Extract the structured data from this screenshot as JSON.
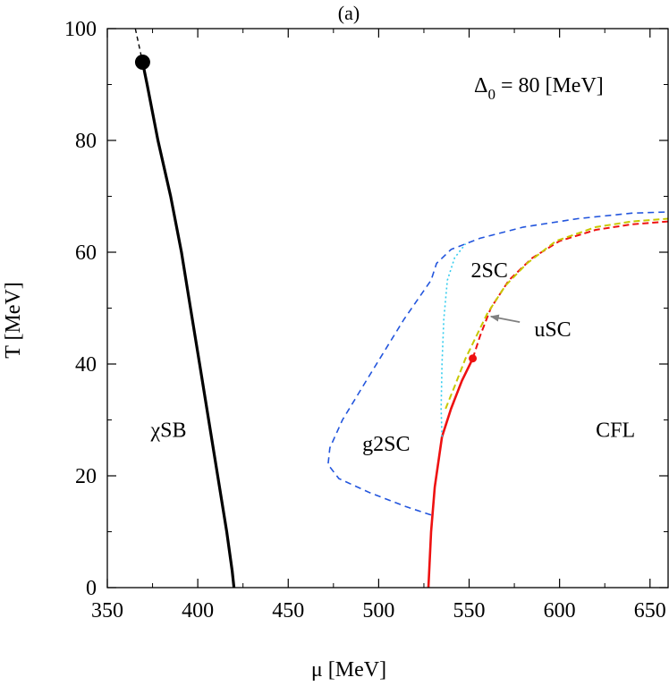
{
  "chart_data": {
    "type": "line",
    "title": "(a)",
    "xlabel": "μ [MeV]",
    "ylabel": "T [MeV]",
    "xlim": [
      350,
      660
    ],
    "ylim": [
      0,
      100
    ],
    "xticks": [
      350,
      400,
      450,
      500,
      550,
      600,
      650
    ],
    "yticks": [
      0,
      20,
      40,
      60,
      80,
      100
    ],
    "parameter_label": {
      "symbol": "Δ",
      "subscript": "0",
      "rest": " = 80 [MeV]"
    },
    "grid": false,
    "series": [
      {
        "style": "black-solid-thick",
        "color": "#000000",
        "points": [
          [
            369.5,
            94.0
          ],
          [
            372,
            90
          ],
          [
            378,
            80
          ],
          [
            385,
            70
          ],
          [
            391,
            60
          ],
          [
            396,
            50
          ],
          [
            401,
            40
          ],
          [
            406,
            30
          ],
          [
            411,
            20
          ],
          [
            416,
            10
          ],
          [
            419,
            3
          ],
          [
            420,
            0
          ]
        ]
      },
      {
        "style": "black-dashed",
        "color": "#000000",
        "points": [
          [
            365.5,
            100
          ],
          [
            367.5,
            97
          ],
          [
            369.5,
            94.0
          ]
        ]
      },
      {
        "style": "red-solid",
        "color": "#ee1111",
        "points": [
          [
            527.5,
            0
          ],
          [
            529,
            10
          ],
          [
            531,
            18
          ],
          [
            535,
            27
          ],
          [
            540,
            32
          ],
          [
            546,
            37
          ],
          [
            552,
            41
          ]
        ]
      },
      {
        "style": "red-dashed",
        "color": "#ee1111",
        "points": [
          [
            552,
            41
          ],
          [
            556,
            45
          ],
          [
            562,
            50
          ],
          [
            572,
            55
          ],
          [
            585,
            59
          ],
          [
            600,
            62
          ],
          [
            620,
            64
          ],
          [
            640,
            65
          ],
          [
            660,
            65.5
          ]
        ]
      },
      {
        "style": "yellow-dashed",
        "color": "#c8c800",
        "points": [
          [
            537,
            32
          ],
          [
            542,
            36
          ],
          [
            548,
            41
          ],
          [
            554,
            45
          ],
          [
            560,
            49
          ],
          [
            570,
            54
          ],
          [
            582,
            58
          ],
          [
            598,
            62
          ],
          [
            620,
            64.5
          ],
          [
            640,
            65.5
          ],
          [
            660,
            66
          ]
        ]
      },
      {
        "style": "blue-dashed",
        "color": "#2255dd",
        "points": [
          [
            529,
            13
          ],
          [
            515,
            14.5
          ],
          [
            495,
            17
          ],
          [
            478,
            19.5
          ],
          [
            472,
            22
          ],
          [
            473,
            25
          ],
          [
            480,
            30
          ],
          [
            495,
            38
          ],
          [
            514,
            48
          ],
          [
            529,
            55
          ],
          [
            532,
            58
          ],
          [
            540,
            60.5
          ],
          [
            556,
            62.5
          ],
          [
            580,
            64.5
          ],
          [
            610,
            66
          ],
          [
            640,
            67
          ],
          [
            660,
            67.2
          ]
        ]
      },
      {
        "style": "cyan-dotted",
        "color": "#33ccee",
        "points": [
          [
            535,
            27
          ],
          [
            534.5,
            32
          ],
          [
            535,
            40
          ],
          [
            536,
            48
          ],
          [
            538,
            55
          ],
          [
            542,
            59
          ],
          [
            548,
            61.5
          ]
        ]
      }
    ],
    "markers": [
      {
        "x": 369.5,
        "y": 94.0,
        "color": "#000000",
        "size": "large"
      },
      {
        "x": 552,
        "y": 41,
        "color": "#ee1111",
        "size": "small"
      }
    ],
    "annotations": [
      {
        "text": "χSB",
        "x": 374,
        "y": 27
      },
      {
        "text": "g2SC",
        "x": 491,
        "y": 24.5
      },
      {
        "text": "2SC",
        "x": 551,
        "y": 55.5
      },
      {
        "text": "uSC",
        "x": 586,
        "y": 45
      },
      {
        "text": "CFL",
        "x": 620,
        "y": 27
      }
    ],
    "arrow": {
      "from": [
        578,
        47.5
      ],
      "to": [
        562,
        48.5
      ],
      "color": "#808080"
    }
  }
}
